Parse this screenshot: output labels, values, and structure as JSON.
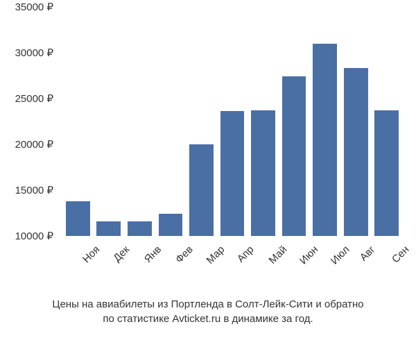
{
  "chart": {
    "type": "bar",
    "ymin": 10000,
    "ymax": 35000,
    "ytick_step": 5000,
    "currency_suffix": " ₽",
    "bar_color": "#4a6fa5",
    "background_color": "#ffffff",
    "tick_fontsize": 15,
    "caption_fontsize": 15,
    "bar_width_ratio": 0.78,
    "categories": [
      "Ноя",
      "Дек",
      "Янв",
      "Фев",
      "Мар",
      "Апр",
      "Май",
      "Июн",
      "Июл",
      "Авг",
      "Сен"
    ],
    "values": [
      13800,
      11600,
      11600,
      12400,
      20000,
      23600,
      23700,
      27400,
      31000,
      28300,
      23700
    ],
    "yticks": [
      10000,
      15000,
      20000,
      25000,
      30000,
      35000
    ],
    "x_label_rotation": -45
  },
  "caption": {
    "line1": "Цены на авиабилеты из Портленда в Солт-Лейк-Сити и обратно",
    "line2": "по статистике Avticket.ru в динамике за год."
  }
}
